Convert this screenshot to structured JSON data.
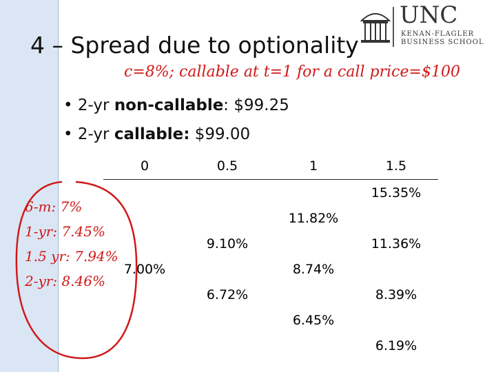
{
  "header": {
    "title": "4 – Spread due to optionality",
    "logo": {
      "name": "UNC",
      "line1": "KENAN-FLAGLER",
      "line2": "BUSINESS SCHOOL"
    }
  },
  "handwritten_note": "c=8%; callable at t=1 for a call price=$100",
  "bullets": [
    [
      "2-yr ",
      "non-callable",
      ": $99.25"
    ],
    [
      "2-yr ",
      "callable:",
      " $99.00"
    ]
  ],
  "tree": {
    "times": [
      "0",
      "0.5",
      "1",
      "1.5"
    ],
    "columns": [
      [
        "7.00%"
      ],
      [
        "9.10%",
        "6.72%"
      ],
      [
        "11.82%",
        "8.74%",
        "6.45%"
      ],
      [
        "15.35%",
        "11.36%",
        "8.39%",
        "6.19%"
      ]
    ]
  },
  "handwritten_rates": [
    "6-m: 7%",
    "1-yr: 7.45%",
    "1.5 yr: 7.94%",
    "2-yr: 8.46%"
  ]
}
